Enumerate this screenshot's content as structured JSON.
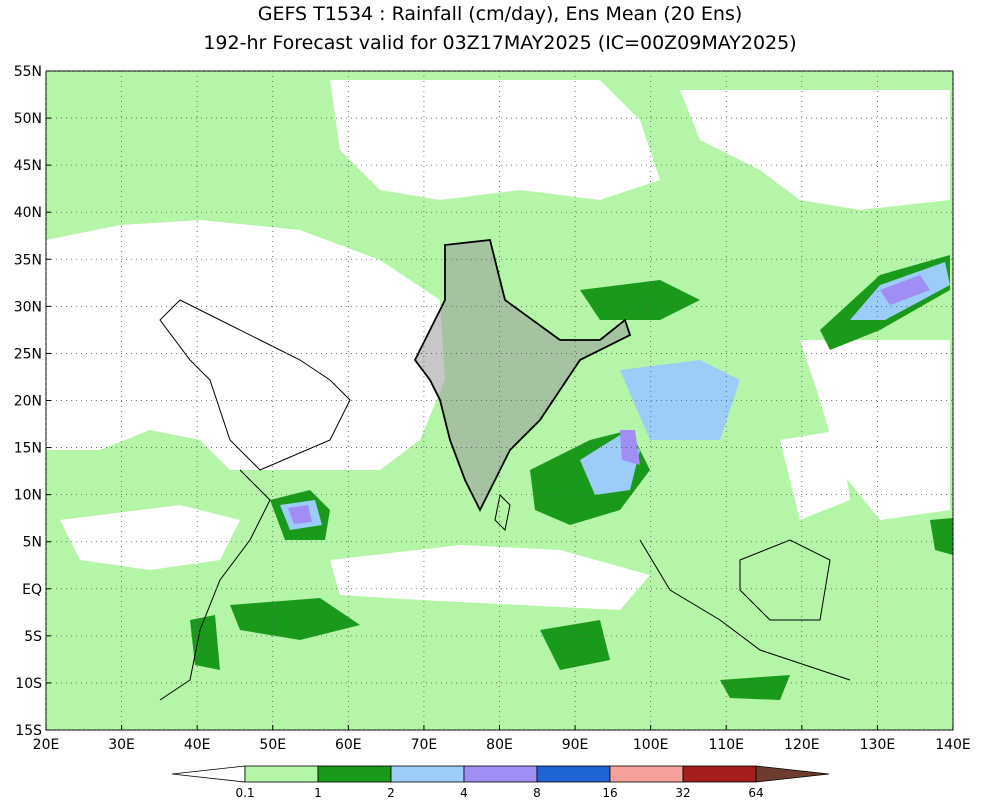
{
  "header": {
    "title": [
      "GEFS T1534 : Rainfall (cm/day), Ens Mean (20 Ens)",
      "192-hr Forecast valid for 03Z17MAY2025 (IC=00Z09MAY2025)"
    ]
  },
  "map": {
    "lon_ticks": [
      {
        "value": 20,
        "label": "20E"
      },
      {
        "value": 30,
        "label": "30E"
      },
      {
        "value": 40,
        "label": "40E"
      },
      {
        "value": 50,
        "label": "50E"
      },
      {
        "value": 60,
        "label": "60E"
      },
      {
        "value": 70,
        "label": "70E"
      },
      {
        "value": 80,
        "label": "80E"
      },
      {
        "value": 90,
        "label": "90E"
      },
      {
        "value": 100,
        "label": "100E"
      },
      {
        "value": 110,
        "label": "110E"
      },
      {
        "value": 120,
        "label": "120E"
      },
      {
        "value": 130,
        "label": "130E"
      },
      {
        "value": 140,
        "label": "140E"
      }
    ],
    "lat_ticks": [
      {
        "value": 55,
        "label": "55N"
      },
      {
        "value": 50,
        "label": "50N"
      },
      {
        "value": 45,
        "label": "45N"
      },
      {
        "value": 40,
        "label": "40N"
      },
      {
        "value": 35,
        "label": "35N"
      },
      {
        "value": 30,
        "label": "30N"
      },
      {
        "value": 25,
        "label": "25N"
      },
      {
        "value": 20,
        "label": "20N"
      },
      {
        "value": 15,
        "label": "15N"
      },
      {
        "value": 10,
        "label": "10N"
      },
      {
        "value": 5,
        "label": "5N"
      },
      {
        "value": 0,
        "label": "EQ"
      },
      {
        "value": -5,
        "label": "5S"
      },
      {
        "value": -10,
        "label": "10S"
      },
      {
        "value": -15,
        "label": "15S"
      }
    ],
    "lonlim": [
      20,
      140
    ],
    "latlim": [
      -15,
      55
    ]
  },
  "legend": {
    "levels": [
      0.1,
      1,
      2,
      4,
      8,
      16,
      32,
      64
    ],
    "colors": [
      "#ffffff",
      "#b4f5a8",
      "#1a9a1a",
      "#9ccdf8",
      "#a08ef5",
      "#1e64d2",
      "#f5a09a",
      "#a51e1e",
      "#6e3c2d"
    ]
  }
}
